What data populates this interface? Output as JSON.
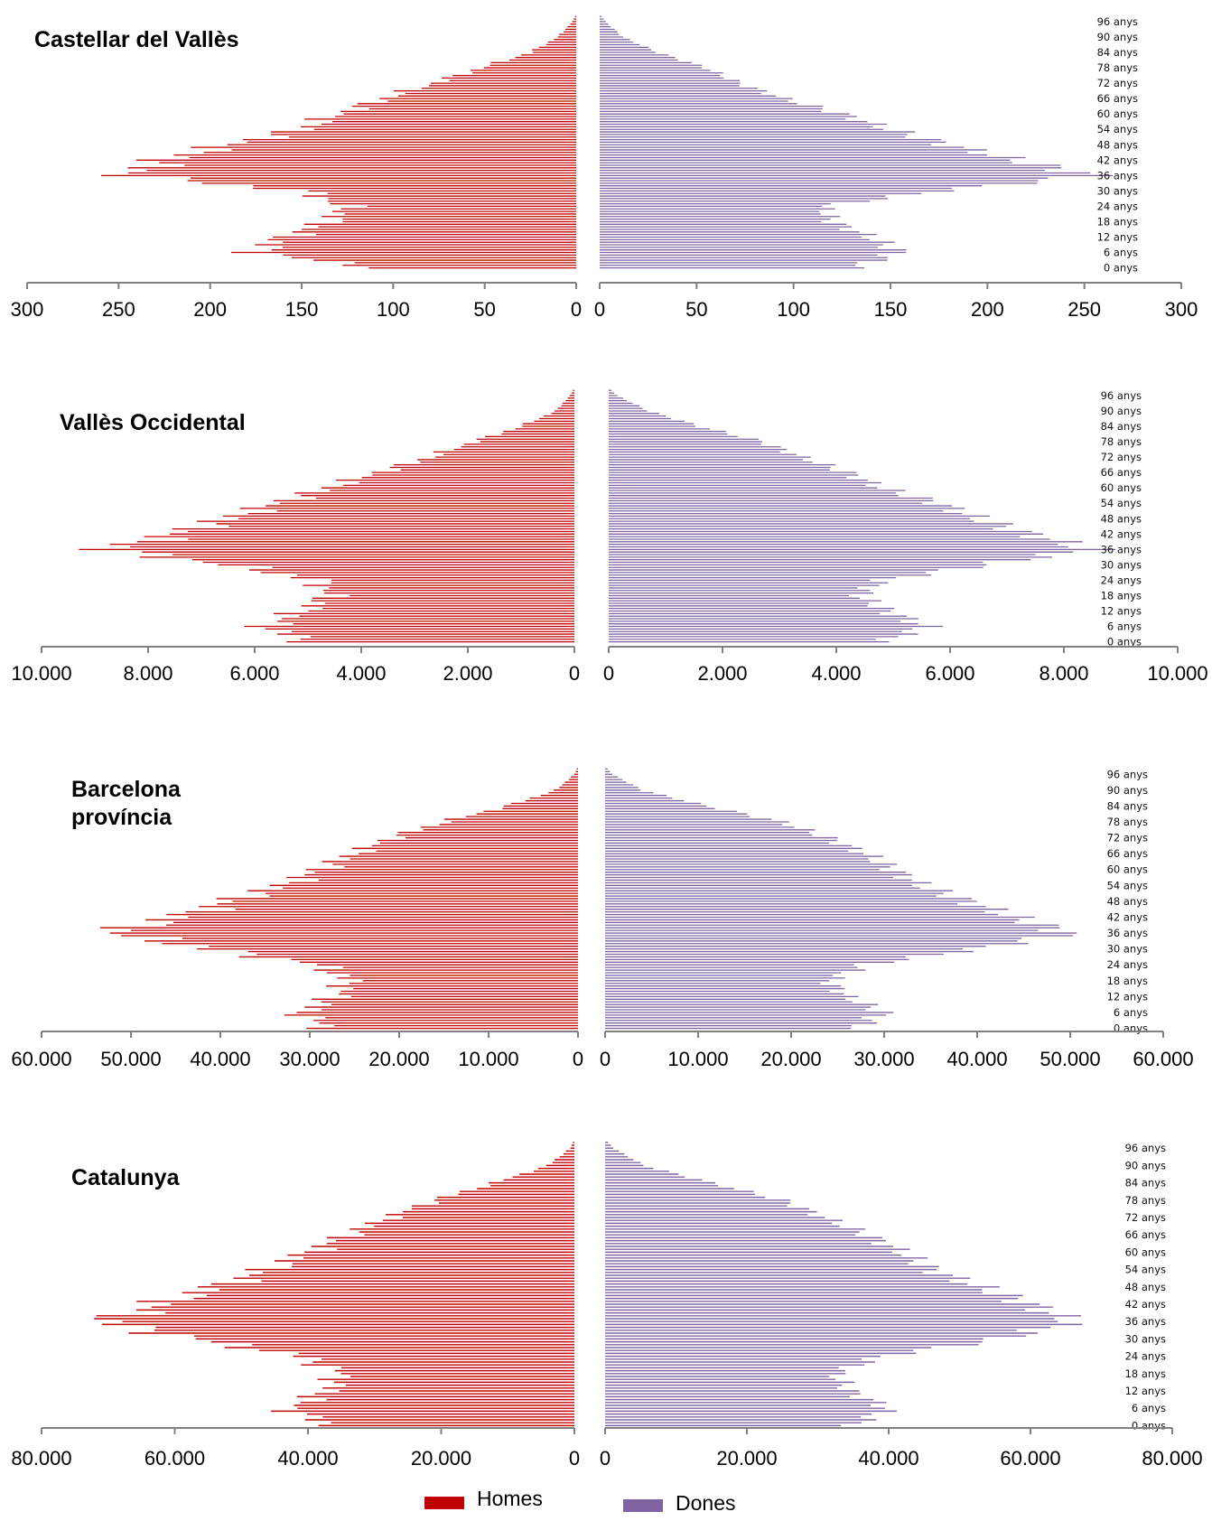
{
  "colors": {
    "homes": "#c00000",
    "dones": "#8064a2",
    "axis": "#808080"
  },
  "legend": {
    "homes": "Homes",
    "dones": "Dones"
  },
  "age_labels": [
    "0 anys",
    "6 anys",
    "12 anys",
    "18 anys",
    "24 anys",
    "30 anys",
    "36 anys",
    "42 anys",
    "48 anys",
    "54 anys",
    "60 anys",
    "66 anys",
    "72 anys",
    "78 anys",
    "84 anys",
    "90 anys",
    "96 anys"
  ],
  "chart_data": [
    {
      "type": "bar",
      "title": "Castellar del Vallès",
      "age_labels": [
        "0 anys",
        "6 anys",
        "12 anys",
        "18 anys",
        "24 anys",
        "30 anys",
        "36 anys",
        "42 anys",
        "48 anys",
        "54 anys",
        "60 anys",
        "66 anys",
        "72 anys",
        "78 anys",
        "84 anys",
        "90 anys",
        "96 anys"
      ],
      "x_ticks_left": [
        "300",
        "250",
        "200",
        "150",
        "100",
        "50",
        "0"
      ],
      "x_ticks_right": [
        "0",
        "50",
        "100",
        "150",
        "200",
        "250",
        "300"
      ],
      "xlim": [
        0,
        300
      ],
      "series": [
        {
          "name": "Homes",
          "age_points": [
            0,
            6,
            12,
            18,
            24,
            30,
            36,
            42,
            48,
            54,
            60,
            66,
            72,
            78,
            84,
            90,
            96,
            99
          ],
          "values": [
            110,
            175,
            160,
            135,
            125,
            150,
            245,
            225,
            190,
            150,
            130,
            105,
            78,
            52,
            25,
            10,
            2,
            0
          ]
        },
        {
          "name": "Dones",
          "age_points": [
            0,
            6,
            12,
            18,
            24,
            30,
            36,
            42,
            48,
            54,
            60,
            66,
            72,
            78,
            84,
            90,
            96,
            99
          ],
          "values": [
            130,
            155,
            140,
            120,
            115,
            175,
            255,
            215,
            180,
            150,
            125,
            95,
            72,
            55,
            30,
            12,
            3,
            0
          ]
        }
      ]
    },
    {
      "type": "bar",
      "title": "Vallès Occidental",
      "age_labels": [
        "0 anys",
        "6 anys",
        "12 anys",
        "18 anys",
        "24 anys",
        "30 anys",
        "36 anys",
        "42 anys",
        "48 anys",
        "54 anys",
        "60 anys",
        "66 anys",
        "72 anys",
        "78 anys",
        "84 anys",
        "90 anys",
        "96 anys"
      ],
      "x_ticks_left": [
        "10.000",
        "8.000",
        "6.000",
        "4.000",
        "2.000",
        "0"
      ],
      "x_ticks_right": [
        "0",
        "2.000",
        "4.000",
        "6.000",
        "8.000",
        "10.000"
      ],
      "xlim": [
        0,
        10000
      ],
      "series": [
        {
          "name": "Homes",
          "age_points": [
            0,
            6,
            12,
            18,
            24,
            30,
            36,
            42,
            48,
            54,
            60,
            66,
            72,
            78,
            84,
            90,
            96,
            99
          ],
          "values": [
            5000,
            5800,
            5100,
            4600,
            4800,
            6500,
            8800,
            7500,
            6500,
            5600,
            4600,
            3700,
            2700,
            1900,
            1000,
            350,
            80,
            0
          ]
        },
        {
          "name": "Dones",
          "age_points": [
            0,
            6,
            12,
            18,
            24,
            30,
            36,
            42,
            48,
            54,
            60,
            66,
            72,
            78,
            84,
            90,
            96,
            99
          ],
          "values": [
            4800,
            5600,
            4900,
            4400,
            4800,
            6600,
            8500,
            7400,
            6500,
            5800,
            4800,
            4200,
            3400,
            2700,
            1600,
            700,
            150,
            0
          ]
        }
      ]
    },
    {
      "type": "bar",
      "title": "Barcelona província",
      "age_labels": [
        "0 anys",
        "6 anys",
        "12 anys",
        "18 anys",
        "24 anys",
        "30 anys",
        "36 anys",
        "42 anys",
        "48 anys",
        "54 anys",
        "60 anys",
        "66 anys",
        "72 anys",
        "78 anys",
        "84 anys",
        "90 anys",
        "96 anys"
      ],
      "x_ticks_left": [
        "60.000",
        "50.000",
        "40.000",
        "30.000",
        "20.000",
        "10.000",
        "0"
      ],
      "x_ticks_right": [
        "0",
        "10.000",
        "20.000",
        "30.000",
        "40.000",
        "50.000",
        "60.000"
      ],
      "xlim": [
        0,
        60000
      ],
      "series": [
        {
          "name": "Homes",
          "age_points": [
            0,
            6,
            12,
            18,
            24,
            30,
            36,
            42,
            48,
            54,
            60,
            66,
            72,
            78,
            84,
            90,
            96,
            99
          ],
          "values": [
            28000,
            31000,
            27000,
            25500,
            29000,
            41000,
            52000,
            45000,
            39000,
            33000,
            29000,
            25000,
            21000,
            15000,
            8000,
            2500,
            400,
            0
          ]
        },
        {
          "name": "Dones",
          "age_points": [
            0,
            6,
            12,
            18,
            24,
            30,
            36,
            42,
            48,
            54,
            60,
            66,
            72,
            78,
            84,
            90,
            96,
            99
          ],
          "values": [
            27000,
            30000,
            26000,
            24000,
            28000,
            40000,
            50000,
            44000,
            39000,
            34000,
            31000,
            28000,
            24000,
            19000,
            11000,
            4000,
            800,
            0
          ]
        }
      ]
    },
    {
      "type": "bar",
      "title": "Catalunya",
      "age_labels": [
        "0 anys",
        "6 anys",
        "12 anys",
        "18 anys",
        "24 anys",
        "30 anys",
        "36 anys",
        "42 anys",
        "48 anys",
        "54 anys",
        "60 anys",
        "66 anys",
        "72 anys",
        "78 anys",
        "84 anys",
        "90 anys",
        "96 anys"
      ],
      "x_ticks_left": [
        "80.000",
        "60.000",
        "40.000",
        "20.000",
        "0"
      ],
      "x_ticks_right": [
        "0",
        "20.000",
        "40.000",
        "60.000",
        "80.000"
      ],
      "xlim": [
        0,
        80000
      ],
      "series": [
        {
          "name": "Homes",
          "age_points": [
            0,
            6,
            12,
            18,
            24,
            30,
            36,
            42,
            48,
            54,
            60,
            66,
            72,
            78,
            84,
            90,
            96,
            99
          ],
          "values": [
            37000,
            43000,
            37000,
            35000,
            41000,
            57000,
            71000,
            62000,
            54000,
            46000,
            40000,
            34000,
            28000,
            21000,
            12000,
            4000,
            600,
            0
          ]
        },
        {
          "name": "Dones",
          "age_points": [
            0,
            6,
            12,
            18,
            24,
            30,
            36,
            42,
            48,
            54,
            60,
            66,
            72,
            78,
            84,
            90,
            96,
            99
          ],
          "values": [
            35000,
            40000,
            34500,
            32500,
            39000,
            56000,
            66000,
            60000,
            53000,
            46000,
            42000,
            37000,
            31000,
            25000,
            15000,
            5500,
            1200,
            0
          ]
        }
      ]
    }
  ]
}
